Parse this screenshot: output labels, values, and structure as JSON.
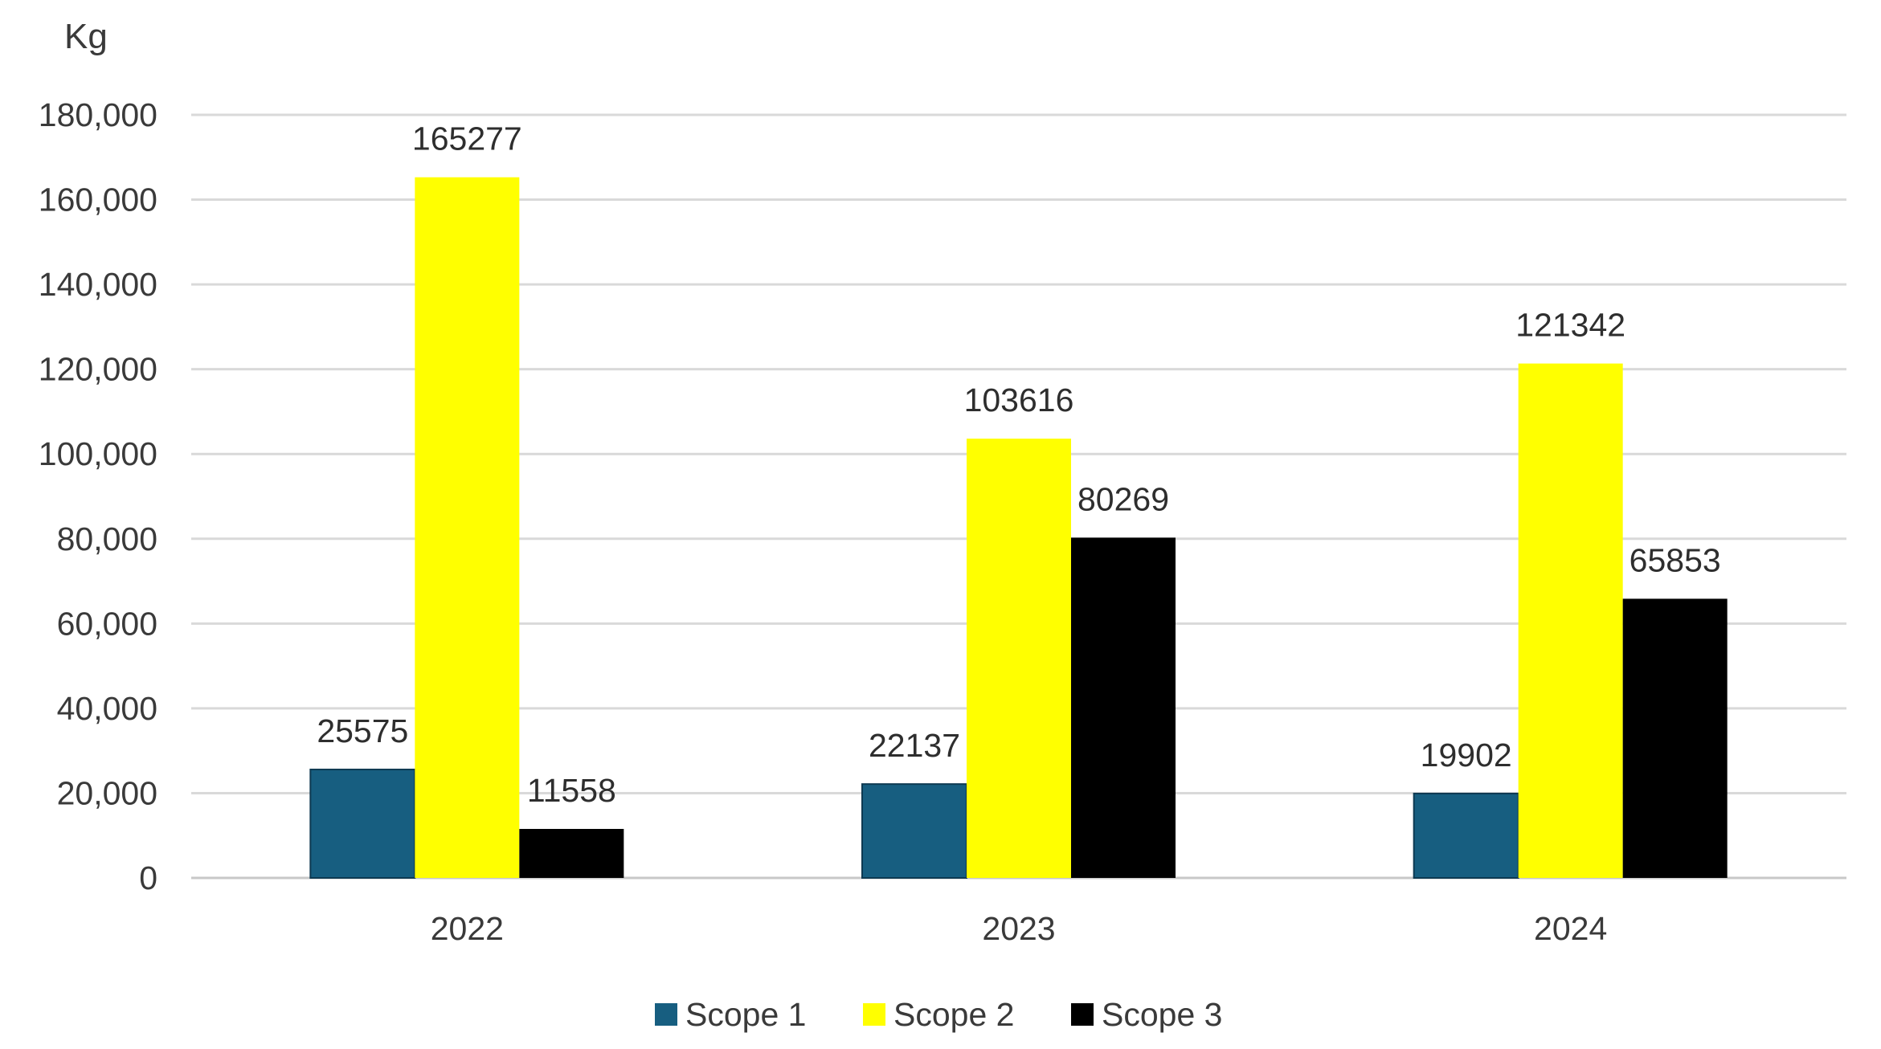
{
  "chart_data": {
    "type": "bar",
    "unit_label": "Kg",
    "categories": [
      "2022",
      "2023",
      "2024"
    ],
    "series": [
      {
        "name": "Scope 1",
        "color": "#175e80",
        "values": [
          25575,
          22137,
          19902
        ]
      },
      {
        "name": "Scope 2",
        "color": "#ffff00",
        "values": [
          165277,
          103616,
          121342
        ]
      },
      {
        "name": "Scope 3",
        "color": "#000000",
        "values": [
          11558,
          80269,
          65853
        ]
      }
    ],
    "ylim": [
      0,
      180000
    ],
    "y_ticks": [
      0,
      20000,
      40000,
      60000,
      80000,
      100000,
      120000,
      140000,
      160000,
      180000
    ],
    "y_tick_labels": [
      "0",
      "20,000",
      "40,000",
      "60,000",
      "80,000",
      "100,000",
      "120,000",
      "140,000",
      "160,000",
      "180,000"
    ],
    "grid": true,
    "legend_position": "bottom"
  }
}
